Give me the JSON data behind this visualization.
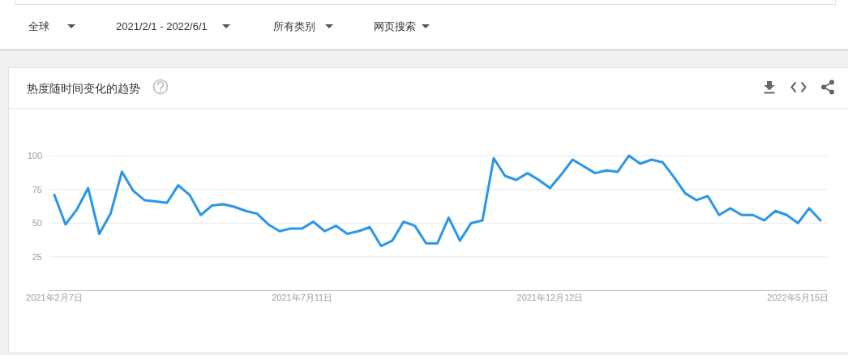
{
  "chart_data": {
    "type": "line",
    "title": "热度随时间变化的趋势",
    "annotations": [
      "全球",
      "2021/2/1 - 2022/6/1",
      "所有类别",
      "网页搜索"
    ],
    "x": [
      "2021-02-07",
      "2021-02-14",
      "2021-02-21",
      "2021-02-28",
      "2021-03-07",
      "2021-03-14",
      "2021-03-21",
      "2021-03-28",
      "2021-04-04",
      "2021-04-11",
      "2021-04-18",
      "2021-04-25",
      "2021-05-02",
      "2021-05-09",
      "2021-05-16",
      "2021-05-23",
      "2021-05-30",
      "2021-06-06",
      "2021-06-13",
      "2021-06-20",
      "2021-06-27",
      "2021-07-04",
      "2021-07-11",
      "2021-07-18",
      "2021-07-25",
      "2021-08-01",
      "2021-08-08",
      "2021-08-15",
      "2021-08-22",
      "2021-08-29",
      "2021-09-05",
      "2021-09-12",
      "2021-09-19",
      "2021-09-26",
      "2021-10-03",
      "2021-10-10",
      "2021-10-17",
      "2021-10-24",
      "2021-10-31",
      "2021-11-07",
      "2021-11-14",
      "2021-11-21",
      "2021-11-28",
      "2021-12-05",
      "2021-12-12",
      "2021-12-19",
      "2021-12-26",
      "2022-01-02",
      "2022-01-09",
      "2022-01-16",
      "2022-01-23",
      "2022-01-30",
      "2022-02-06",
      "2022-02-13",
      "2022-02-20",
      "2022-02-27",
      "2022-03-06",
      "2022-03-13",
      "2022-03-20",
      "2022-03-27",
      "2022-04-03",
      "2022-04-10",
      "2022-04-17",
      "2022-04-24",
      "2022-05-01",
      "2022-05-08",
      "2022-05-15",
      "2022-05-22",
      "2022-05-29"
    ],
    "series": [
      {
        "color": "#2a96e8",
        "values": [
          71,
          49,
          60,
          76,
          42,
          57,
          88,
          74,
          67,
          66,
          65,
          78,
          71,
          56,
          63,
          64,
          62,
          59,
          57,
          49,
          44,
          46,
          46,
          51,
          44,
          48,
          42,
          44,
          47,
          33,
          37,
          51,
          48,
          35,
          35,
          54,
          37,
          50,
          52,
          98,
          85,
          82,
          87,
          82,
          76,
          86,
          97,
          92,
          87,
          89,
          88,
          100,
          94,
          97,
          95,
          84,
          72,
          67,
          70,
          56,
          61,
          56,
          56,
          52,
          59,
          56,
          50,
          61,
          52
        ]
      }
    ],
    "xlim": [
      "2021-02-04",
      "2022-06-02"
    ],
    "xticks": [
      {
        "value": "2021-02-07",
        "label": "2021年2月7日"
      },
      {
        "value": "2021-07-11",
        "label": "2021年7月11日"
      },
      {
        "value": "2021-12-12",
        "label": "2021年12月12日"
      },
      {
        "value": "2022-05-15",
        "label": "2022年5月15日"
      }
    ],
    "ylim": [
      0,
      100
    ],
    "yticks": [
      25,
      50,
      75,
      100
    ],
    "grid": "y",
    "line_style": "solid"
  }
}
